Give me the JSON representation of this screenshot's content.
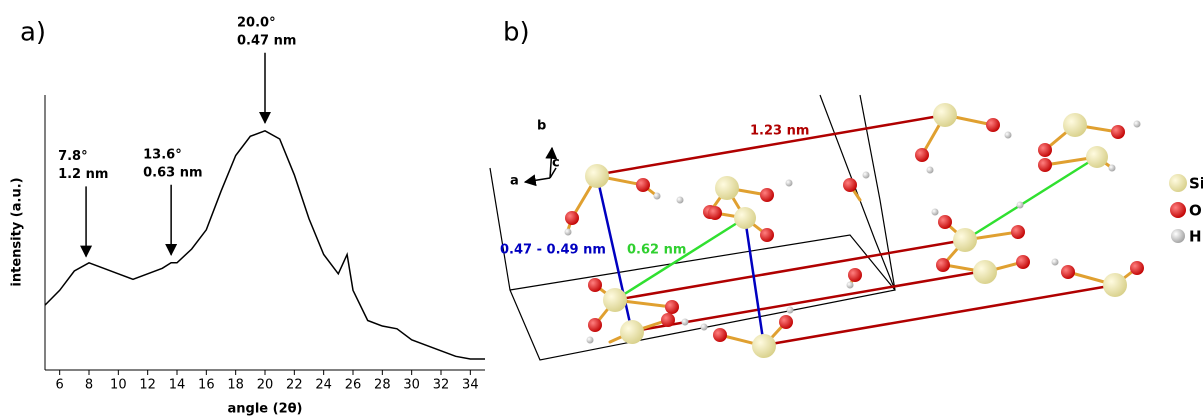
{
  "chart_data": {
    "type": "line",
    "panel_label": "a)",
    "xlabel": "angle (2θ)",
    "ylabel": "intensity (a.u.)",
    "x": [
      5,
      6,
      7,
      8,
      9,
      10,
      11,
      12,
      13,
      13.6,
      14,
      15,
      16,
      17,
      18,
      19,
      20,
      21,
      22,
      23,
      24,
      25,
      25.6,
      26,
      27,
      28,
      29,
      30,
      31,
      32,
      33,
      34,
      35
    ],
    "values": [
      23.6,
      29,
      36,
      39,
      37,
      35,
      33,
      35,
      37,
      39,
      39,
      44,
      51,
      65,
      78,
      85,
      87,
      84,
      71,
      55,
      42,
      35,
      42,
      29,
      18,
      16,
      15,
      11,
      9,
      7,
      5,
      4,
      4
    ],
    "color": "#000000",
    "xlim": [
      5,
      35
    ],
    "xticks": [
      6,
      8,
      10,
      12,
      14,
      16,
      18,
      20,
      22,
      24,
      26,
      28,
      30,
      32,
      34
    ],
    "ylim": [
      0,
      100
    ],
    "annotations": [
      {
        "x": 7.8,
        "label": "7.8°",
        "spacing": "1.2 nm"
      },
      {
        "x": 13.6,
        "label": "13.6°",
        "spacing": "0.63 nm"
      },
      {
        "x": 20.0,
        "label": "20.0°",
        "spacing": "0.47 nm"
      }
    ]
  },
  "structure": {
    "panel_label": "b)",
    "axes": [
      "a",
      "b",
      "c"
    ],
    "distances": [
      "1.23 nm",
      "0.47 - 0.49 nm",
      "0.62 nm"
    ],
    "legend": [
      "Si",
      "O",
      "H"
    ]
  }
}
